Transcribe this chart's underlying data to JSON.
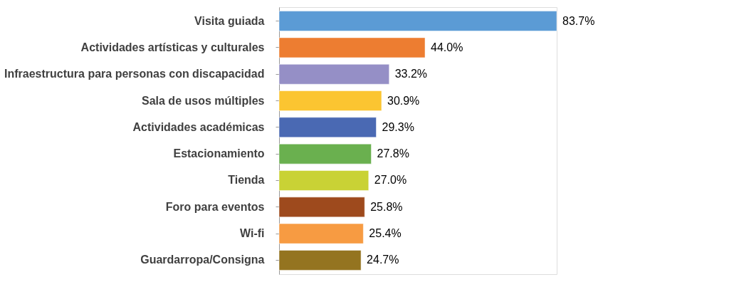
{
  "chart_data": {
    "type": "bar",
    "orientation": "horizontal",
    "categories": [
      "Visita guiada",
      "Actividades artísticas y culturales",
      "Infraestructura para personas con discapacidad",
      "Sala de usos múltiples",
      "Actividades académicas",
      "Estacionamiento",
      "Tienda",
      "Foro para eventos",
      "Wi-fi",
      "Guardarropa/Consigna"
    ],
    "values": [
      83.7,
      44.0,
      33.2,
      30.9,
      29.3,
      27.8,
      27.0,
      25.8,
      25.4,
      24.7
    ],
    "value_labels": [
      "83.7%",
      "44.0%",
      "33.2%",
      "30.9%",
      "29.3%",
      "27.8%",
      "27.0%",
      "25.8%",
      "25.4%",
      "24.7%"
    ],
    "colors": [
      "#5b9bd5",
      "#ed7d31",
      "#958fc6",
      "#fbc531",
      "#4a69b3",
      "#6ab04f",
      "#c9d235",
      "#9e4a1d",
      "#f79b42",
      "#947420"
    ]
  }
}
